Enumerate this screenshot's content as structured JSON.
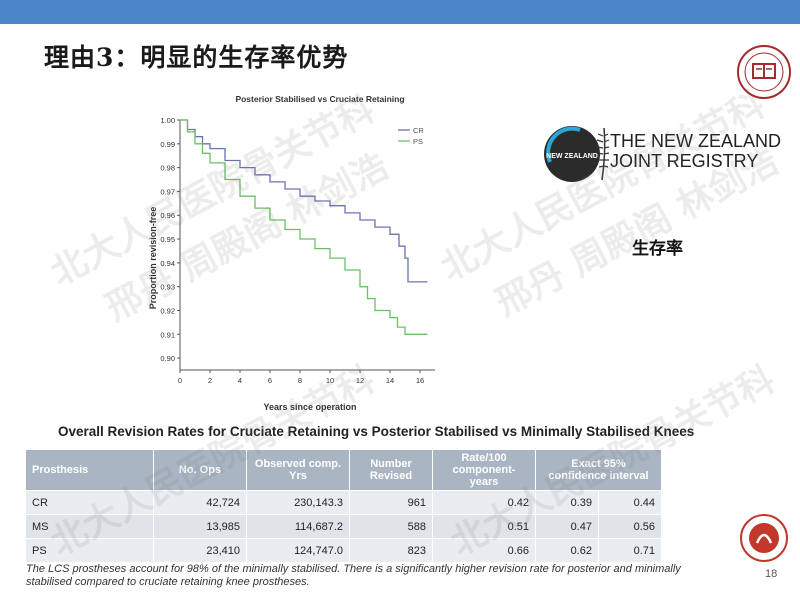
{
  "slide": {
    "title": "理由3：明显的生存率优势",
    "page_number": "18"
  },
  "watermark": {
    "line1": "北大人民医院骨关节科",
    "line2": "邢丹 周殿阁 林剑浩"
  },
  "registry": {
    "line1": "THE NEW ZEALAND",
    "line2": "JOINT REGISTRY",
    "badge_text": "NEW ZEALAND"
  },
  "survival_label": "生存率",
  "chart_data": {
    "type": "line",
    "title": "Posterior Stabilised vs Cruciate Retaining",
    "xlabel": "Years since operation",
    "ylabel": "Proportion revision-free",
    "xlim": [
      0,
      17
    ],
    "ylim": [
      0.895,
      1.0
    ],
    "x_ticks": [
      "0",
      "2",
      "4",
      "6",
      "8",
      "10",
      "12",
      "14",
      "16"
    ],
    "y_ticks": [
      "1.00",
      "0.99",
      "0.98",
      "0.97",
      "0.96",
      "0.95",
      "0.94",
      "0.93",
      "0.92",
      "0.91",
      "0.90"
    ],
    "legend_position": "top-right",
    "series": [
      {
        "name": "CR",
        "color": "#6b73b5",
        "x": [
          0,
          0.5,
          1,
          1.5,
          2,
          3,
          4,
          5,
          6,
          7,
          8,
          9,
          10,
          11,
          12,
          13,
          14,
          14.6,
          15,
          15.2,
          16,
          16.5
        ],
        "y": [
          1.0,
          0.996,
          0.993,
          0.99,
          0.988,
          0.983,
          0.98,
          0.977,
          0.974,
          0.971,
          0.968,
          0.966,
          0.964,
          0.961,
          0.958,
          0.955,
          0.952,
          0.947,
          0.942,
          0.932,
          0.932,
          0.932
        ]
      },
      {
        "name": "PS",
        "color": "#6cbf68",
        "x": [
          0,
          0.5,
          1,
          1.5,
          2,
          3,
          4,
          5,
          6,
          7,
          8,
          9,
          10,
          11,
          12,
          12.5,
          13,
          14,
          14.5,
          15,
          15.5,
          16.5
        ],
        "y": [
          1.0,
          0.995,
          0.99,
          0.986,
          0.982,
          0.975,
          0.968,
          0.963,
          0.958,
          0.954,
          0.95,
          0.946,
          0.942,
          0.937,
          0.93,
          0.925,
          0.92,
          0.917,
          0.913,
          0.91,
          0.91,
          0.91
        ]
      }
    ]
  },
  "table": {
    "title": "Overall Revision Rates for Cruciate Retaining vs Posterior Stabilised vs Minimally Stabilised Knees",
    "headers": [
      "Prosthesis",
      "No. Ops",
      "Observed comp. Yrs",
      "Number Revised",
      "Rate/100 component-years",
      "Exact 95% confidence interval"
    ],
    "rows": [
      [
        "CR",
        "42,724",
        "230,143.3",
        "961",
        "0.42",
        "0.39",
        "0.44"
      ],
      [
        "MS",
        "13,985",
        "114,687.2",
        "588",
        "0.51",
        "0.47",
        "0.56"
      ],
      [
        "PS",
        "23,410",
        "124,747.0",
        "823",
        "0.66",
        "0.62",
        "0.71"
      ]
    ]
  },
  "footnote": "The LCS prostheses account for 98% of the minimally stabilised. There is a significantly higher revision rate for posterior and minimally stabilised compared to cruciate retaining knee prostheses.",
  "colors": {
    "topbar": "#4a86c8",
    "header_bg": "#a9b5c2",
    "cr_line": "#6b73b5",
    "ps_line": "#6cbf68",
    "pku_red": "#a52a2a"
  }
}
